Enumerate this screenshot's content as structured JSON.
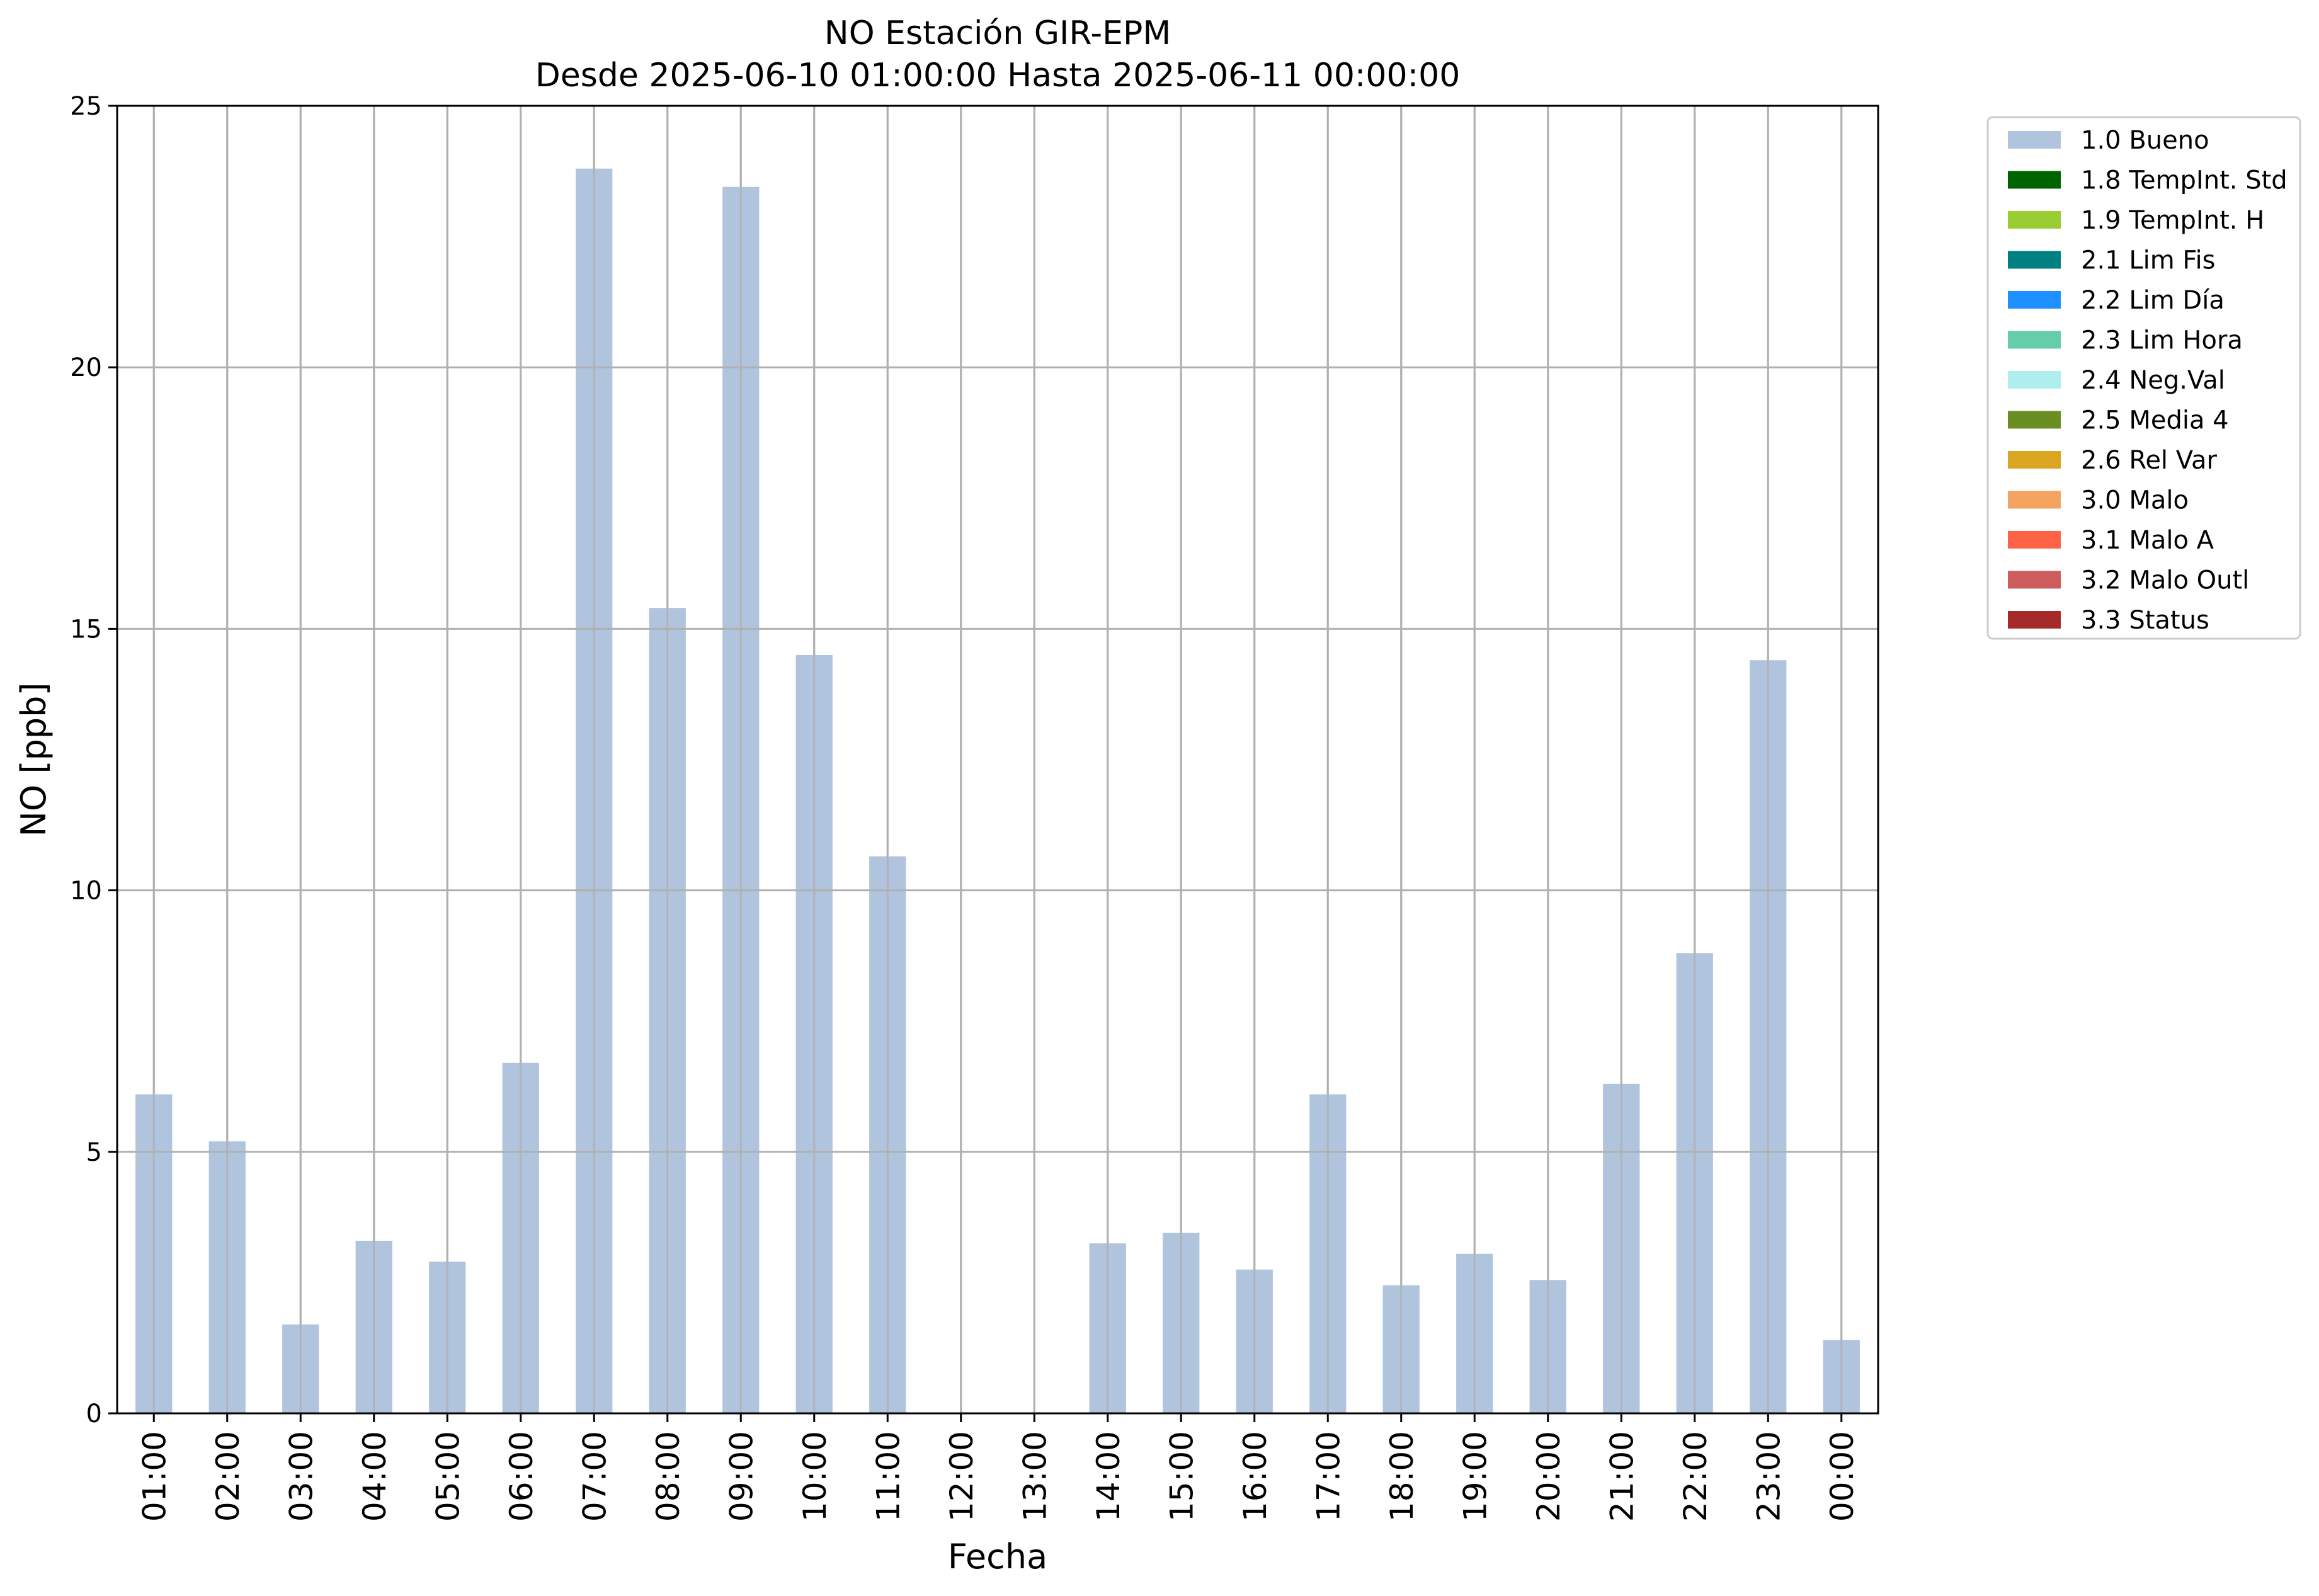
{
  "chart_data": {
    "type": "bar",
    "title": "NO Estación GIR-EPM",
    "subtitle": "Desde 2025-06-10 01:00:00 Hasta 2025-06-11 00:00:00",
    "xlabel": "Fecha",
    "ylabel": "NO [ppb]",
    "ylim": [
      0,
      25
    ],
    "yticks": [
      "0",
      "5",
      "10",
      "15",
      "20",
      "25"
    ],
    "grid": true,
    "legend_position": "outside-top-right",
    "categories": [
      "01:00",
      "02:00",
      "03:00",
      "04:00",
      "05:00",
      "06:00",
      "07:00",
      "08:00",
      "09:00",
      "10:00",
      "11:00",
      "12:00",
      "13:00",
      "14:00",
      "15:00",
      "16:00",
      "17:00",
      "18:00",
      "19:00",
      "20:00",
      "21:00",
      "22:00",
      "23:00",
      "00:00"
    ],
    "series": [
      {
        "name": "1.0 Bueno",
        "color": "#b0c4de",
        "values": [
          6.1,
          5.2,
          1.7,
          3.3,
          2.9,
          6.7,
          23.8,
          15.4,
          23.45,
          14.5,
          10.65,
          null,
          null,
          3.25,
          3.45,
          2.75,
          6.1,
          2.45,
          3.05,
          2.55,
          6.3,
          8.8,
          14.4,
          1.4
        ]
      }
    ],
    "legend": [
      {
        "label": "1.0 Bueno",
        "color": "#b0c4de"
      },
      {
        "label": "1.8 TempInt. Std",
        "color": "#006400"
      },
      {
        "label": "1.9 TempInt. H",
        "color": "#9acd32"
      },
      {
        "label": "2.1 Lim Fis",
        "color": "#008080"
      },
      {
        "label": "2.2 Lim Día",
        "color": "#1e90ff"
      },
      {
        "label": "2.3 Lim Hora",
        "color": "#66cdaa"
      },
      {
        "label": "2.4 Neg.Val",
        "color": "#afeeee"
      },
      {
        "label": "2.5 Media 4",
        "color": "#6b8e23"
      },
      {
        "label": "2.6 Rel Var",
        "color": "#daa520"
      },
      {
        "label": "3.0 Malo",
        "color": "#f4a460"
      },
      {
        "label": "3.1 Malo A",
        "color": "#ff6347"
      },
      {
        "label": "3.2 Malo Outl",
        "color": "#cd5c5c"
      },
      {
        "label": "3.3 Status",
        "color": "#a52a2a"
      }
    ]
  }
}
